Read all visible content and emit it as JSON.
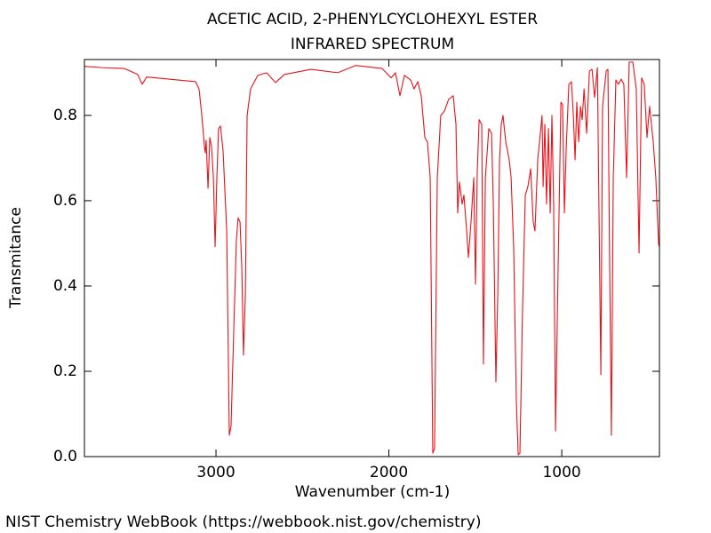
{
  "chart_data": {
    "type": "line",
    "title": "ACETIC ACID, 2-PHENYLCYCLOHEXYL ESTER",
    "subtitle": "INFRARED SPECTRUM",
    "x_label": "Wavenumber (cm-1)",
    "y_label": "Transmitance",
    "source": "NIST Chemistry WebBook (https://webbook.nist.gov/chemistry)",
    "color": "#e8131b",
    "xlim": [
      3761,
      435
    ],
    "ylim": [
      0,
      0.931
    ],
    "xticks": [
      3000,
      2000,
      1000
    ],
    "yticks": [
      {
        "value": 0,
        "label": "0.0"
      },
      0.2,
      0.4,
      0.6,
      0.8
    ],
    "x": [
      3761,
      3658,
      3530,
      3453,
      3427,
      3401,
      3272,
      3118,
      3098,
      3082,
      3067,
      3062,
      3057,
      3046,
      3036,
      3026,
      3015,
      3005,
      2995,
      2985,
      2974,
      2959,
      2938,
      2923,
      2913,
      2897,
      2882,
      2872,
      2861,
      2851,
      2841,
      2830,
      2820,
      2800,
      2758,
      2707,
      2656,
      2604,
      2450,
      2296,
      2193,
      2039,
      1987,
      1962,
      1936,
      1910,
      1874,
      1854,
      1833,
      1813,
      1792,
      1777,
      1761,
      1746,
      1736,
      1720,
      1700,
      1679,
      1654,
      1628,
      1612,
      1602,
      1592,
      1576,
      1566,
      1550,
      1540,
      1525,
      1509,
      1499,
      1489,
      1478,
      1463,
      1453,
      1442,
      1422,
      1406,
      1396,
      1381,
      1370,
      1360,
      1350,
      1340,
      1324,
      1304,
      1293,
      1278,
      1263,
      1252,
      1242,
      1227,
      1211,
      1196,
      1180,
      1165,
      1155,
      1139,
      1124,
      1114,
      1108,
      1098,
      1088,
      1077,
      1067,
      1057,
      1047,
      1036,
      1021,
      1005,
      995,
      985,
      974,
      959,
      944,
      933,
      923,
      913,
      902,
      892,
      882,
      871,
      856,
      840,
      825,
      810,
      794,
      774,
      764,
      743,
      733,
      723,
      713,
      702,
      687,
      672,
      656,
      641,
      625,
      610,
      589,
      569,
      553,
      538,
      523,
      507,
      492,
      471,
      456,
      440,
      435
    ],
    "values": [
      0.915,
      0.912,
      0.91,
      0.896,
      0.873,
      0.89,
      0.885,
      0.879,
      0.862,
      0.8,
      0.727,
      0.712,
      0.742,
      0.629,
      0.748,
      0.727,
      0.654,
      0.492,
      0.654,
      0.769,
      0.775,
      0.717,
      0.529,
      0.05,
      0.071,
      0.3,
      0.508,
      0.56,
      0.55,
      0.446,
      0.238,
      0.383,
      0.8,
      0.862,
      0.894,
      0.9,
      0.877,
      0.896,
      0.908,
      0.9,
      0.917,
      0.91,
      0.888,
      0.9,
      0.846,
      0.894,
      0.883,
      0.862,
      0.879,
      0.846,
      0.748,
      0.738,
      0.654,
      0.008,
      0.019,
      0.654,
      0.8,
      0.81,
      0.838,
      0.846,
      0.779,
      0.571,
      0.644,
      0.592,
      0.613,
      0.529,
      0.467,
      0.55,
      0.654,
      0.404,
      0.665,
      0.79,
      0.779,
      0.217,
      0.654,
      0.769,
      0.758,
      0.592,
      0.175,
      0.383,
      0.696,
      0.779,
      0.8,
      0.738,
      0.696,
      0.654,
      0.488,
      0.133,
      0.004,
      0.008,
      0.342,
      0.613,
      0.633,
      0.675,
      0.55,
      0.529,
      0.696,
      0.758,
      0.8,
      0.633,
      0.779,
      0.592,
      0.769,
      0.571,
      0.8,
      0.592,
      0.06,
      0.446,
      0.831,
      0.825,
      0.571,
      0.727,
      0.873,
      0.879,
      0.8,
      0.696,
      0.831,
      0.738,
      0.821,
      0.79,
      0.862,
      0.758,
      0.904,
      0.908,
      0.842,
      0.912,
      0.192,
      0.821,
      0.904,
      0.908,
      0.446,
      0.05,
      0.654,
      0.883,
      0.873,
      0.885,
      0.873,
      0.654,
      0.925,
      0.925,
      0.862,
      0.477,
      0.888,
      0.873,
      0.748,
      0.821,
      0.738,
      0.654,
      0.498,
      0.492
    ]
  }
}
